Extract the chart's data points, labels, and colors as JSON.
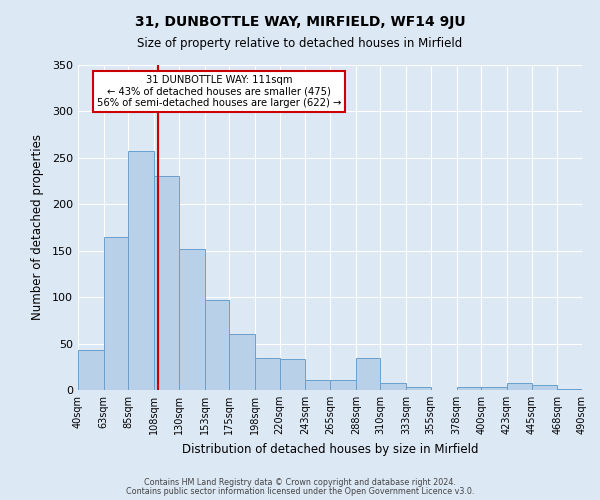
{
  "title": "31, DUNBOTTLE WAY, MIRFIELD, WF14 9JU",
  "subtitle": "Size of property relative to detached houses in Mirfield",
  "xlabel": "Distribution of detached houses by size in Mirfield",
  "ylabel": "Number of detached properties",
  "footnote1": "Contains HM Land Registry data © Crown copyright and database right 2024.",
  "footnote2": "Contains public sector information licensed under the Open Government Licence v3.0.",
  "bar_edges": [
    40,
    63,
    85,
    108,
    130,
    153,
    175,
    198,
    220,
    243,
    265,
    288,
    310,
    333,
    355,
    378,
    400,
    423,
    445,
    468,
    490
  ],
  "bar_heights": [
    43,
    165,
    257,
    230,
    152,
    97,
    60,
    35,
    33,
    11,
    11,
    35,
    8,
    3,
    0,
    3,
    3,
    8,
    5,
    1
  ],
  "bar_color": "#b8d0e8",
  "bar_edge_color": "#6aa0cc",
  "vline_x": 111,
  "vline_color": "#cc0000",
  "annotation_text": "31 DUNBOTTLE WAY: 111sqm\n← 43% of detached houses are smaller (475)\n56% of semi-detached houses are larger (622) →",
  "annotation_box_color": "#cc0000",
  "ylim": [
    0,
    350
  ],
  "yticks": [
    0,
    50,
    100,
    150,
    200,
    250,
    300,
    350
  ],
  "plot_bg_color": "#dde8f5",
  "fig_bg_color": "#dde8f5"
}
